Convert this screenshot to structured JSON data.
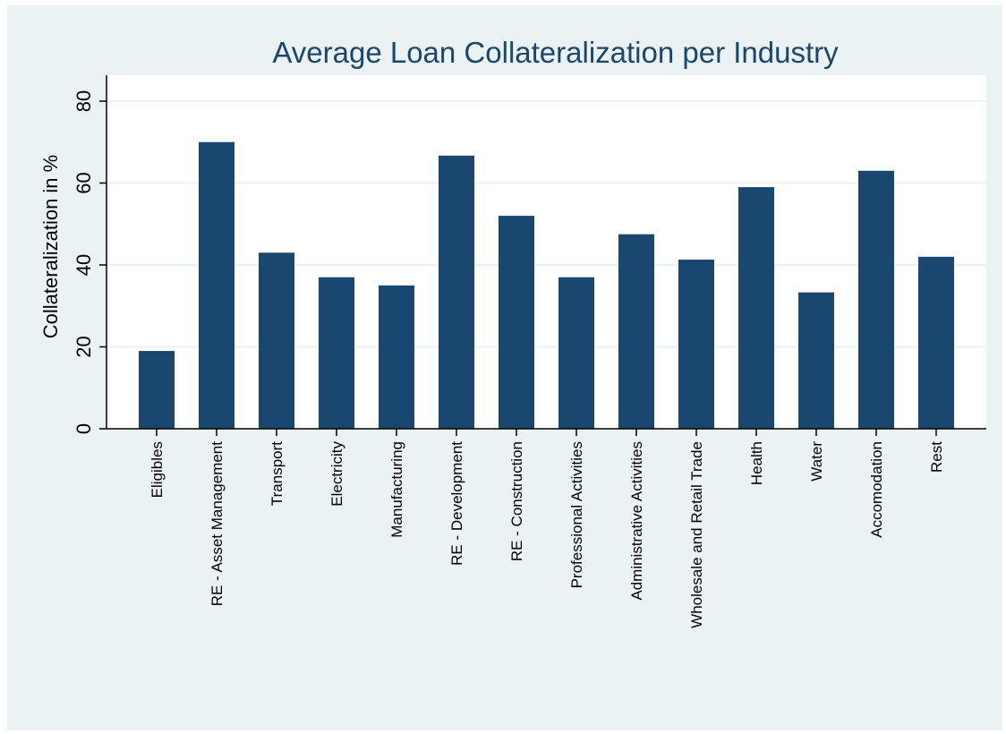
{
  "colors": {
    "background": "#eaf2f3",
    "plot_background": "#ffffff",
    "bar": "#1a476f",
    "title": "#1a476f",
    "gridline": "#eaf2f3"
  },
  "chart_data": {
    "type": "bar",
    "title": "Average Loan Collateralization per Industry",
    "xlabel": "",
    "ylabel": "Collateralization in %",
    "ylim": [
      0,
      80
    ],
    "yticks": [
      0,
      20,
      40,
      60,
      80
    ],
    "grid": true,
    "legend": "none",
    "categories": [
      "Eligibles",
      "RE - Asset Management",
      "Transport",
      "Electricity",
      "Manufacturing",
      "RE - Development",
      "RE - Construction",
      "Professional Activities",
      "Administrative Activities",
      "Wholesale and Retail Trade",
      "Health",
      "Water",
      "Accomodation",
      "Rest"
    ],
    "values": [
      19,
      70,
      43,
      37,
      35,
      66.7,
      52,
      37,
      47.5,
      41.3,
      59,
      33.3,
      63,
      42
    ]
  }
}
